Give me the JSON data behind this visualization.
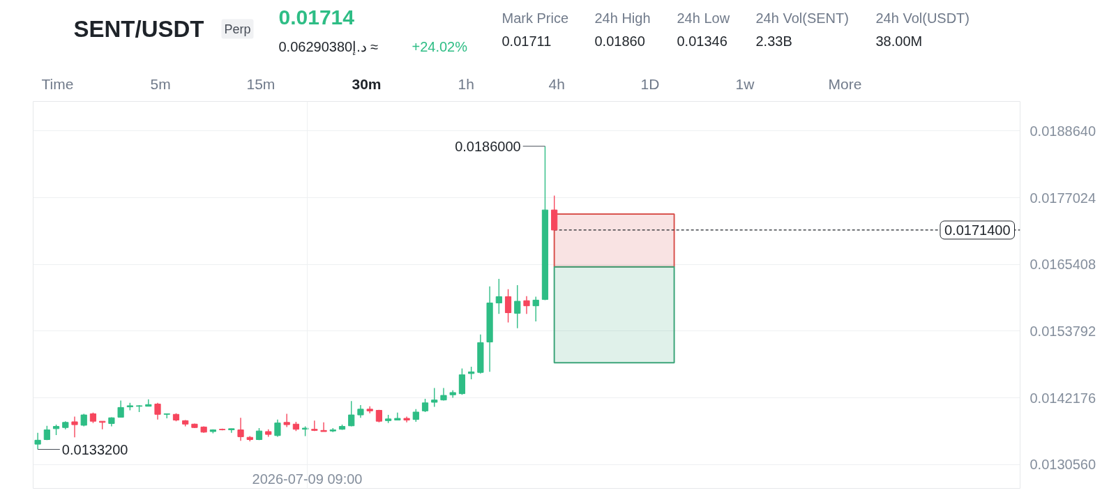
{
  "chart_data": {
    "type": "candlestick",
    "title": "SENT/USDT",
    "subtitle": "Perp",
    "categories": [
      null,
      null,
      null,
      null,
      null,
      null,
      null,
      null,
      null,
      null,
      null,
      null,
      null,
      null,
      null,
      null,
      null,
      null,
      null,
      null,
      null,
      null,
      null,
      null,
      null,
      null,
      null,
      null,
      null,
      null,
      null,
      null,
      null,
      null,
      null,
      null,
      null,
      null,
      null,
      null,
      null,
      null,
      null,
      null,
      null,
      null,
      null,
      null,
      null,
      null,
      null,
      null,
      null,
      null,
      null,
      null,
      null,
      null,
      null,
      null,
      null,
      null,
      null,
      null,
      null,
      null,
      null,
      null,
      null,
      null,
      null,
      null,
      null,
      null,
      null,
      null,
      null,
      null,
      null,
      null,
      null,
      null,
      null,
      null,
      null,
      null,
      null,
      null,
      null,
      null,
      null,
      null,
      null,
      null,
      null,
      null,
      null,
      null,
      null,
      null,
      null,
      null,
      null,
      null,
      null,
      null,
      null
    ],
    "ohlc": [
      [
        0.01341,
        0.01361,
        0.01332,
        0.01348
      ],
      [
        0.01349,
        0.01373,
        0.01348,
        0.01366
      ],
      [
        0.01368,
        0.01375,
        0.01357,
        0.01372
      ],
      [
        0.0137,
        0.01381,
        0.01367,
        0.01379
      ],
      [
        0.0138,
        0.01389,
        0.01353,
        0.01375
      ],
      [
        0.01374,
        0.01394,
        0.01372,
        0.01392
      ],
      [
        0.01394,
        0.01396,
        0.01378,
        0.01381
      ],
      [
        0.01381,
        0.01381,
        0.01367,
        0.01379
      ],
      [
        0.01377,
        0.01388,
        0.01372,
        0.01387
      ],
      [
        0.01388,
        0.01417,
        0.01388,
        0.01405
      ],
      [
        0.01406,
        0.01413,
        0.014,
        0.01408
      ],
      [
        0.01407,
        0.01409,
        0.01397,
        0.01408
      ],
      [
        0.01407,
        0.01419,
        0.01407,
        0.0141
      ],
      [
        0.01411,
        0.01413,
        0.01384,
        0.01393
      ],
      [
        0.01393,
        0.01394,
        0.01386,
        0.01394
      ],
      [
        0.01393,
        0.01395,
        0.01381,
        0.01383
      ],
      [
        0.01382,
        0.01383,
        0.01372,
        0.01376
      ],
      [
        0.01376,
        0.01377,
        0.01369,
        0.0137
      ],
      [
        0.01371,
        0.01372,
        0.01361,
        0.01362
      ],
      [
        0.01363,
        0.01367,
        0.0136,
        0.01366
      ],
      [
        0.01367,
        0.01368,
        0.01365,
        0.01366
      ],
      [
        0.01366,
        0.01368,
        0.01361,
        0.01368
      ],
      [
        0.01366,
        0.01387,
        0.01347,
        0.01354
      ],
      [
        0.01353,
        0.01355,
        0.01346,
        0.01349
      ],
      [
        0.01349,
        0.01369,
        0.01348,
        0.01364
      ],
      [
        0.01363,
        0.01367,
        0.01354,
        0.01358
      ],
      [
        0.01356,
        0.01384,
        0.01354,
        0.01378
      ],
      [
        0.01379,
        0.01394,
        0.01371,
        0.01375
      ],
      [
        0.01376,
        0.0138,
        0.01364,
        0.01367
      ],
      [
        0.01367,
        0.01372,
        0.01355,
        0.01369
      ],
      [
        0.01367,
        0.01382,
        0.01364,
        0.01365
      ],
      [
        0.01365,
        0.01379,
        0.01363,
        0.01363
      ],
      [
        0.01364,
        0.01369,
        0.01362,
        0.01366
      ],
      [
        0.01367,
        0.01375,
        0.01366,
        0.01372
      ],
      [
        0.01373,
        0.01416,
        0.01372,
        0.01392
      ],
      [
        0.01392,
        0.01409,
        0.01387,
        0.01402
      ],
      [
        0.01402,
        0.01407,
        0.01395,
        0.01399
      ],
      [
        0.014,
        0.01401,
        0.01379,
        0.01381
      ],
      [
        0.01382,
        0.01392,
        0.01378,
        0.01385
      ],
      [
        0.01383,
        0.01396,
        0.01383,
        0.01386
      ],
      [
        0.01386,
        0.01389,
        0.01379,
        0.01383
      ],
      [
        0.01384,
        0.01402,
        0.0138,
        0.01397
      ],
      [
        0.01399,
        0.0142,
        0.01397,
        0.01413
      ],
      [
        0.01414,
        0.01439,
        0.01406,
        0.01418
      ],
      [
        0.01418,
        0.01439,
        0.01417,
        0.01426
      ],
      [
        0.01427,
        0.01435,
        0.01422,
        0.01431
      ],
      [
        0.01429,
        0.01473,
        0.01427,
        0.01462
      ],
      [
        0.01464,
        0.01476,
        0.01454,
        0.01467
      ],
      [
        0.01466,
        0.01532,
        0.01464,
        0.01518
      ],
      [
        0.01519,
        0.01616,
        0.01467,
        0.01587
      ],
      [
        0.01587,
        0.01629,
        0.01568,
        0.01598
      ],
      [
        0.01598,
        0.01611,
        0.01553,
        0.0157
      ],
      [
        0.01569,
        0.01618,
        0.01543,
        0.0159
      ],
      [
        0.01591,
        0.01599,
        0.01568,
        0.01582
      ],
      [
        0.01582,
        0.01598,
        0.01555,
        0.01592
      ],
      [
        0.01593,
        0.0186,
        0.01592,
        0.01749
      ],
      [
        0.01749,
        0.01774,
        0.01714,
        0.01714
      ],
      null,
      null,
      null,
      null,
      null,
      null,
      null,
      null,
      null,
      null,
      null,
      null,
      null,
      null,
      null,
      null,
      null,
      null,
      null,
      null,
      null,
      null,
      null,
      null,
      null,
      null,
      null,
      null,
      null,
      null,
      null,
      null,
      null,
      null,
      null,
      null,
      null,
      null,
      null,
      null,
      null,
      null,
      null,
      null,
      null,
      null,
      null,
      null,
      null,
      null
    ],
    "colors": [
      "#2ebd85",
      "#2ebd85",
      "#2ebd85",
      "#2ebd85",
      "#f6465d",
      "#2ebd85",
      "#f6465d",
      "#f6465d",
      "#2ebd85",
      "#2ebd85",
      "#2ebd85",
      "#2ebd85",
      "#2ebd85",
      "#f6465d",
      "#2ebd85",
      "#f6465d",
      "#f6465d",
      "#f6465d",
      "#f6465d",
      "#2ebd85",
      "#f6465d",
      "#2ebd85",
      "#f6465d",
      "#f6465d",
      "#2ebd85",
      "#f6465d",
      "#2ebd85",
      "#f6465d",
      "#f6465d",
      "#2ebd85",
      "#f6465d",
      "#f6465d",
      "#2ebd85",
      "#2ebd85",
      "#2ebd85",
      "#2ebd85",
      "#f6465d",
      "#f6465d",
      "#2ebd85",
      "#2ebd85",
      "#f6465d",
      "#2ebd85",
      "#2ebd85",
      "#2ebd85",
      "#2ebd85",
      "#2ebd85",
      "#2ebd85",
      "#2ebd85",
      "#2ebd85",
      "#2ebd85",
      "#2ebd85",
      "#f6465d",
      "#2ebd85",
      "#f6465d",
      "#2ebd85",
      "#2ebd85",
      "#f6465d",
      null,
      null,
      null,
      null,
      null,
      null,
      null,
      null,
      null,
      null,
      null,
      null,
      null,
      null,
      null,
      null,
      null,
      null,
      null,
      null,
      null,
      null,
      null,
      null,
      null,
      null,
      null,
      null,
      null,
      null,
      null,
      null,
      null,
      null,
      null,
      null,
      null,
      null,
      null,
      null,
      null,
      null,
      null,
      null,
      null,
      null,
      null,
      null,
      null,
      null
    ],
    "ylim": [
      0.01264,
      0.01938
    ],
    "yticks": [
      {
        "value": 0.013056,
        "label": "0.0130560"
      },
      0.0142176,
      0.0153792,
      0.0165408,
      0.0177024,
      {
        "value": 0.018864,
        "label": "0.0188640"
      }
    ],
    "grid": true,
    "ref_lines": [
      {
        "axis": "y",
        "value": 0.01714,
        "label": "0.0171400",
        "color": "#1e2329",
        "line_style": "dashed"
      }
    ],
    "bands": [
      {
        "axis": "y",
        "from": 0.0165,
        "to": 0.01742,
        "color": "#d9534f"
      },
      {
        "axis": "y",
        "from": 0.01483,
        "to": 0.0165,
        "color": "#3da57a"
      }
    ],
    "annotations": [
      "0.01714",
      "0.06290380د.إ ≈",
      "+24.02%",
      "Mark Price",
      "0.01711",
      "24h High",
      "0.01860",
      "24h Low",
      "0.01346",
      "24h Vol(SENT)",
      "2.33B",
      "24h Vol(USDT)",
      "38.00M",
      "Time",
      "5m",
      "15m",
      "30m",
      "1h",
      "4h",
      "1D",
      "1w",
      "More",
      "2026-07-09 09:00",
      "0.0186000",
      "0.0133200"
    ]
  }
}
